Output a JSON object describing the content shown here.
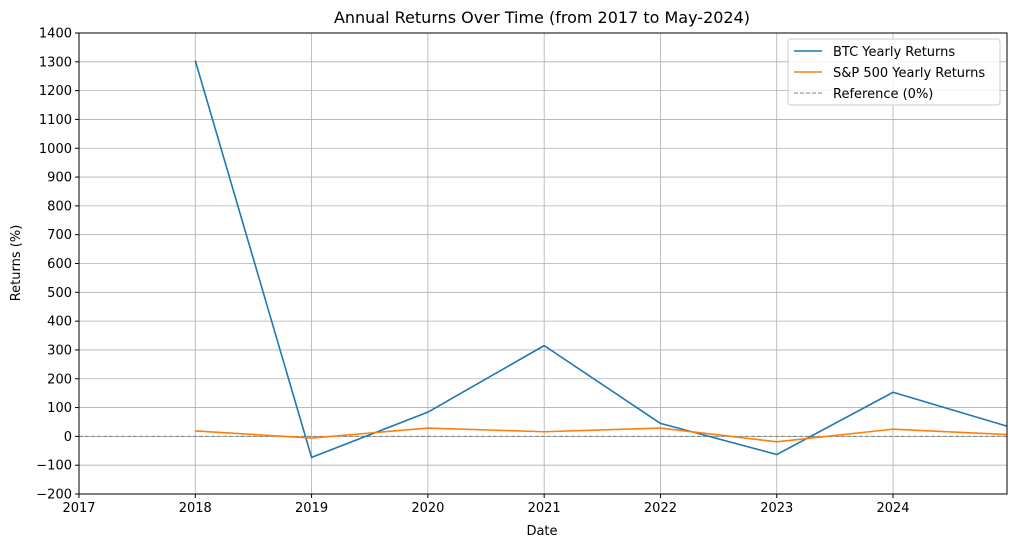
{
  "chart_data": {
    "type": "line",
    "title": "Annual Returns Over Time (from 2017 to May-2024)",
    "xlabel": "Date",
    "ylabel": "Returns (%)",
    "x_ticks": [
      "2017",
      "2018",
      "2019",
      "2020",
      "2021",
      "2022",
      "2023",
      "2024"
    ],
    "xlim": [
      2017,
      2024.98
    ],
    "ylim": [
      -200,
      1400
    ],
    "y_ticks": [
      -200,
      -100,
      0,
      100,
      200,
      300,
      400,
      500,
      600,
      700,
      800,
      900,
      1000,
      1100,
      1200,
      1300,
      1400
    ],
    "grid": true,
    "legend_position": "top-right",
    "series": [
      {
        "name": "BTC Yearly Returns",
        "color": "#1f77b4",
        "x": [
          2018,
          2019,
          2020,
          2021,
          2022,
          2023,
          2024,
          2025
        ],
        "values": [
          1304,
          -73,
          84,
          315,
          45,
          -63,
          153,
          33
        ]
      },
      {
        "name": "S&P 500 Yearly Returns",
        "color": "#ff7f0e",
        "x": [
          2018,
          2019,
          2020,
          2021,
          2022,
          2023,
          2024,
          2025
        ],
        "values": [
          19,
          -6,
          29,
          16,
          29,
          -19,
          25,
          6
        ]
      }
    ],
    "reference_line": {
      "name": "Reference (0%)",
      "value": 0,
      "color": "#808080",
      "style": "dashed"
    }
  }
}
